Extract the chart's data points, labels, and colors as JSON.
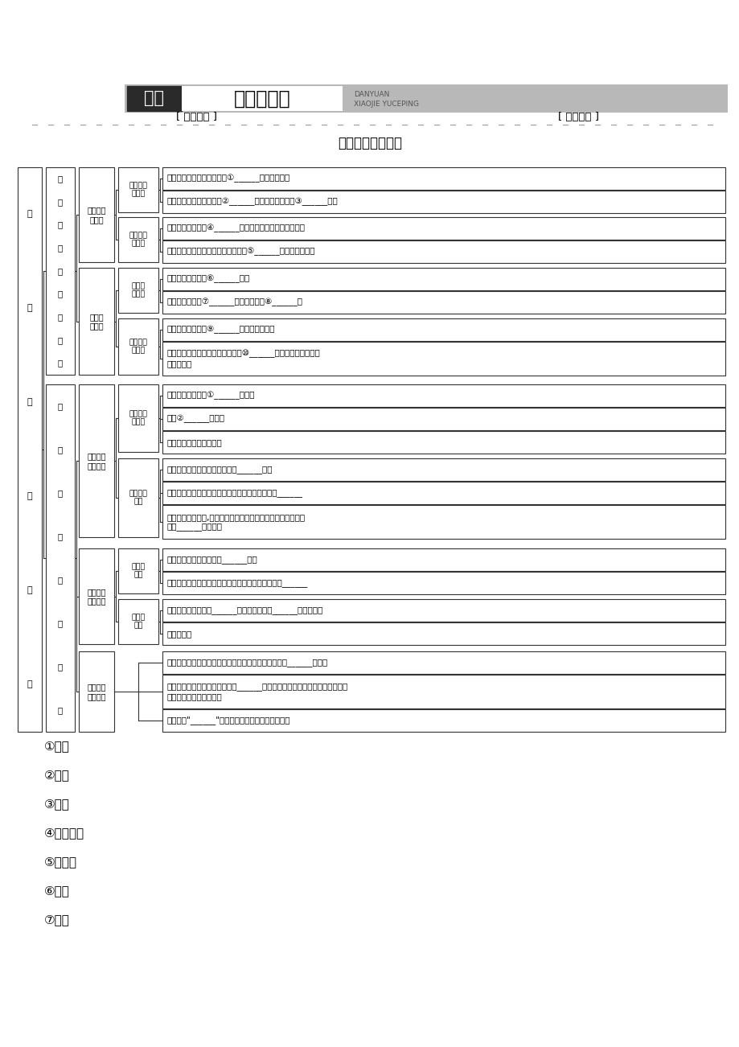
{
  "bg_color": "#ffffff",
  "answers": [
    "①调解",
    "②行政",
    "③诉讲",
    "④劳动争议",
    "⑤不公开",
    "⑥最后",
    "⑦程序"
  ]
}
